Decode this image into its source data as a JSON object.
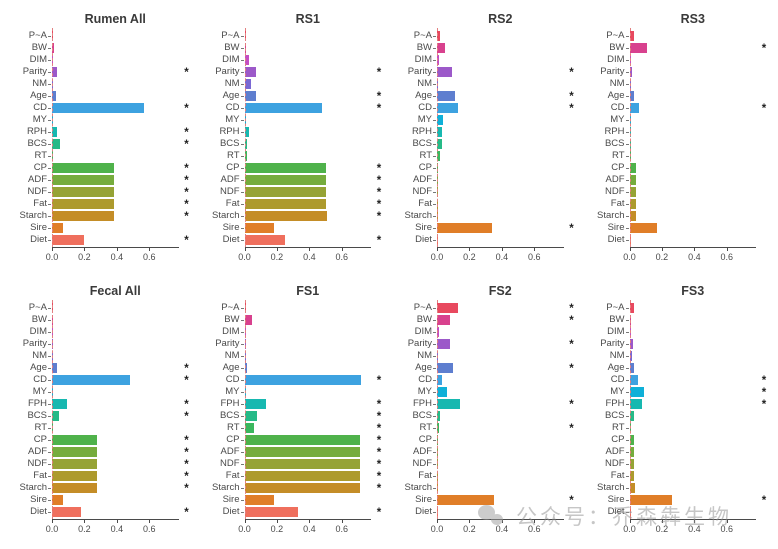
{
  "figure": {
    "xlim": [
      0,
      0.78
    ],
    "xticks": [
      0,
      0.2,
      0.4,
      0.6
    ],
    "xtick_labels": [
      "0.0",
      "0.2",
      "0.4",
      "0.6"
    ],
    "significance_symbol": "*",
    "zero_line_color": "#e28080",
    "bar_colors": [
      "#e8495f",
      "#d8418e",
      "#c44ec4",
      "#9c59c9",
      "#7a68d4",
      "#5e7ecf",
      "#3da2e0",
      "#0fb0d8",
      "#17b8b0",
      "#26ba87",
      "#3bb75e",
      "#4fb24b",
      "#76ac3d",
      "#96a335",
      "#ad9a2d",
      "#c48d27",
      "#e07e28",
      "#ef6f5d"
    ]
  },
  "watermark": {
    "text": "公众号：乔森犇生物"
  },
  "chart_data": [
    {
      "type": "bar",
      "orientation": "horizontal",
      "title": "Rumen All",
      "categories": [
        "P~A",
        "BW",
        "DIM",
        "Parity",
        "NM",
        "Age",
        "CD",
        "MY",
        "RPH",
        "BCS",
        "RT",
        "CP",
        "ADF",
        "NDF",
        "Fat",
        "Starch",
        "Sire",
        "Diet"
      ],
      "values": [
        0.006,
        0.01,
        0.004,
        0.03,
        0.005,
        0.022,
        0.57,
        0.004,
        0.032,
        0.05,
        0.005,
        0.38,
        0.38,
        0.38,
        0.38,
        0.385,
        0.07,
        0.2
      ],
      "significant": [
        0,
        0,
        0,
        1,
        0,
        0,
        1,
        0,
        1,
        1,
        0,
        1,
        1,
        1,
        1,
        1,
        0,
        1
      ]
    },
    {
      "type": "bar",
      "orientation": "horizontal",
      "title": "RS1",
      "categories": [
        "P~A",
        "BW",
        "DIM",
        "Parity",
        "NM",
        "Age",
        "CD",
        "MY",
        "RPH",
        "BCS",
        "RT",
        "CP",
        "ADF",
        "NDF",
        "Fat",
        "Starch",
        "Sire",
        "Diet"
      ],
      "values": [
        0.01,
        0.005,
        0.028,
        0.07,
        0.038,
        0.07,
        0.48,
        0.004,
        0.03,
        0.014,
        0.014,
        0.505,
        0.505,
        0.505,
        0.505,
        0.51,
        0.18,
        0.25
      ],
      "significant": [
        0,
        0,
        0,
        1,
        0,
        1,
        1,
        0,
        0,
        0,
        0,
        1,
        1,
        1,
        1,
        1,
        0,
        1
      ]
    },
    {
      "type": "bar",
      "orientation": "horizontal",
      "title": "RS2",
      "categories": [
        "P~A",
        "BW",
        "DIM",
        "Parity",
        "NM",
        "Age",
        "CD",
        "MY",
        "RPH",
        "BCS",
        "RT",
        "CP",
        "ADF",
        "NDF",
        "Fat",
        "Starch",
        "Sire",
        "Diet"
      ],
      "values": [
        0.02,
        0.05,
        0.01,
        0.09,
        0.005,
        0.11,
        0.13,
        0.04,
        0.03,
        0.03,
        0.02,
        0.004,
        0.004,
        0.004,
        0.004,
        0.004,
        0.34,
        0.004
      ],
      "significant": [
        0,
        0,
        0,
        1,
        0,
        1,
        1,
        0,
        0,
        0,
        0,
        0,
        0,
        0,
        0,
        0,
        1,
        0
      ]
    },
    {
      "type": "bar",
      "orientation": "horizontal",
      "title": "RS3",
      "categories": [
        "P~A",
        "BW",
        "DIM",
        "Parity",
        "NM",
        "Age",
        "CD",
        "MY",
        "RPH",
        "BCS",
        "RT",
        "CP",
        "ADF",
        "NDF",
        "Fat",
        "Starch",
        "Sire",
        "Diet"
      ],
      "values": [
        0.025,
        0.11,
        0.01,
        0.016,
        0.006,
        0.03,
        0.06,
        0.004,
        0.004,
        0.004,
        0.01,
        0.04,
        0.04,
        0.04,
        0.04,
        0.042,
        0.17,
        0.01
      ],
      "significant": [
        0,
        1,
        0,
        0,
        0,
        0,
        1,
        0,
        0,
        0,
        0,
        0,
        0,
        0,
        0,
        0,
        0,
        0
      ]
    },
    {
      "type": "bar",
      "orientation": "horizontal",
      "title": "Fecal All",
      "categories": [
        "P~A",
        "BW",
        "DIM",
        "Parity",
        "NM",
        "Age",
        "CD",
        "MY",
        "FPH",
        "BCS",
        "RT",
        "CP",
        "ADF",
        "NDF",
        "Fat",
        "Starch",
        "Sire",
        "Diet"
      ],
      "values": [
        0.007,
        0.006,
        0.003,
        0.009,
        0.006,
        0.03,
        0.48,
        0.003,
        0.09,
        0.042,
        0.004,
        0.275,
        0.275,
        0.275,
        0.275,
        0.278,
        0.07,
        0.18
      ],
      "significant": [
        0,
        0,
        0,
        0,
        0,
        1,
        1,
        0,
        1,
        1,
        0,
        1,
        1,
        1,
        1,
        1,
        0,
        1
      ]
    },
    {
      "type": "bar",
      "orientation": "horizontal",
      "title": "FS1",
      "categories": [
        "P~A",
        "BW",
        "DIM",
        "Parity",
        "NM",
        "Age",
        "CD",
        "MY",
        "FPH",
        "BCS",
        "RT",
        "CP",
        "ADF",
        "NDF",
        "Fat",
        "Starch",
        "Sire",
        "Diet"
      ],
      "values": [
        0.006,
        0.048,
        0.006,
        0.006,
        0.006,
        0.018,
        0.72,
        0.003,
        0.13,
        0.08,
        0.06,
        0.71,
        0.71,
        0.71,
        0.71,
        0.712,
        0.18,
        0.33
      ],
      "significant": [
        0,
        0,
        0,
        0,
        0,
        0,
        1,
        0,
        1,
        1,
        1,
        1,
        1,
        1,
        1,
        1,
        0,
        1
      ]
    },
    {
      "type": "bar",
      "orientation": "horizontal",
      "title": "FS2",
      "categories": [
        "P~A",
        "BW",
        "DIM",
        "Parity",
        "NM",
        "Age",
        "CD",
        "MY",
        "FPH",
        "BCS",
        "RT",
        "CP",
        "ADF",
        "NDF",
        "Fat",
        "Starch",
        "Sire",
        "Diet"
      ],
      "values": [
        0.13,
        0.08,
        0.01,
        0.08,
        0.006,
        0.1,
        0.03,
        0.06,
        0.14,
        0.02,
        0.012,
        0.004,
        0.004,
        0.004,
        0.004,
        0.004,
        0.35,
        0.004
      ],
      "significant": [
        1,
        1,
        0,
        1,
        0,
        1,
        0,
        0,
        1,
        0,
        1,
        0,
        0,
        0,
        0,
        0,
        1,
        0
      ]
    },
    {
      "type": "bar",
      "orientation": "horizontal",
      "title": "FS3",
      "categories": [
        "P~A",
        "BW",
        "DIM",
        "Parity",
        "NM",
        "Age",
        "CD",
        "MY",
        "FPH",
        "BCS",
        "RT",
        "CP",
        "ADF",
        "NDF",
        "Fat",
        "Starch",
        "Sire",
        "Diet"
      ],
      "values": [
        0.03,
        0.005,
        0.008,
        0.02,
        0.015,
        0.03,
        0.05,
        0.09,
        0.08,
        0.03,
        0.01,
        0.03,
        0.03,
        0.03,
        0.03,
        0.032,
        0.26,
        0.01
      ],
      "significant": [
        0,
        0,
        0,
        0,
        0,
        0,
        1,
        1,
        1,
        0,
        0,
        0,
        0,
        0,
        0,
        0,
        1,
        0
      ]
    }
  ]
}
